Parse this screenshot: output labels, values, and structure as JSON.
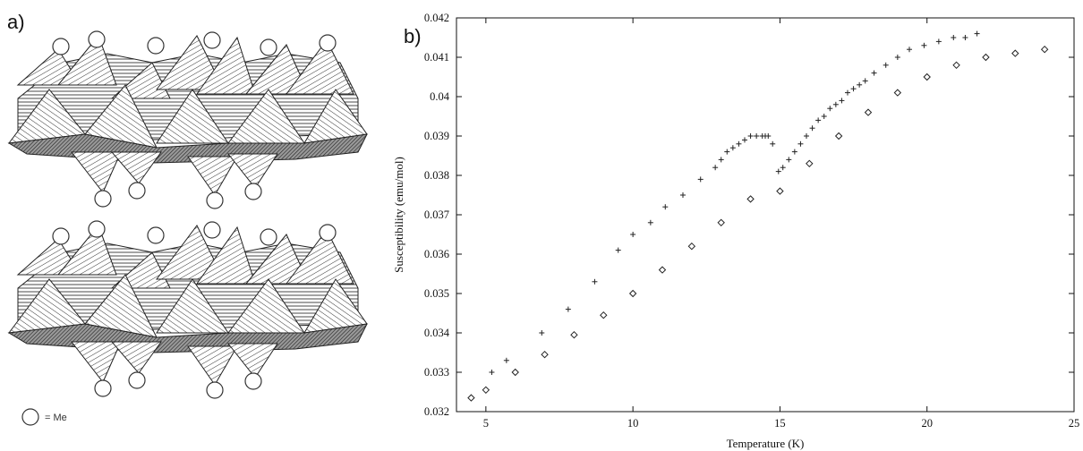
{
  "panel_a": {
    "label": "a)",
    "legend": {
      "symbol_icon": "circle-outline-icon",
      "text": "= Me"
    }
  },
  "panel_b": {
    "label": "b)"
  },
  "chart_data": {
    "type": "scatter",
    "xlabel": "Temperature (K)",
    "ylabel": "Susceptibility (emu/mol)",
    "xlim": [
      4,
      25
    ],
    "ylim": [
      0.032,
      0.042
    ],
    "x_ticks": [
      5,
      10,
      15,
      20,
      25
    ],
    "y_ticks": [
      0.032,
      0.033,
      0.034,
      0.035,
      0.036,
      0.037,
      0.038,
      0.039,
      0.04,
      0.041,
      0.042
    ],
    "y_tick_labels": [
      "0.032",
      "0.033",
      "0.034",
      "0.035",
      "0.036",
      "0.037",
      "0.038",
      "0.039",
      "0.04",
      "0.041",
      "0.042"
    ],
    "x_tick_labels": [
      "5",
      "10",
      "15",
      "20",
      "25"
    ],
    "grid": false,
    "legend": "none",
    "series": [
      {
        "marker": "plus",
        "x": [
          5.2,
          5.7,
          6.9,
          7.8,
          8.7,
          9.5,
          10.0,
          10.6,
          11.1,
          11.7,
          12.3,
          12.8,
          13.0,
          13.2,
          13.4,
          13.6,
          13.8,
          14.0,
          14.2,
          14.4,
          14.5,
          14.6,
          14.75,
          14.95,
          15.1,
          15.3,
          15.5,
          15.7,
          15.9,
          16.1,
          16.3,
          16.5,
          16.7,
          16.9,
          17.1,
          17.3,
          17.5,
          17.7,
          17.9,
          18.2,
          18.6,
          19.0,
          19.4,
          19.9,
          20.4,
          20.9,
          21.3,
          21.7
        ],
        "y": [
          0.033,
          0.0333,
          0.034,
          0.0346,
          0.0353,
          0.0361,
          0.0365,
          0.0368,
          0.0372,
          0.0375,
          0.0379,
          0.0382,
          0.0384,
          0.0386,
          0.0387,
          0.0388,
          0.0389,
          0.039,
          0.039,
          0.039,
          0.039,
          0.039,
          0.0388,
          0.0381,
          0.0382,
          0.0384,
          0.0386,
          0.0388,
          0.039,
          0.0392,
          0.0394,
          0.0395,
          0.0397,
          0.0398,
          0.0399,
          0.0401,
          0.0402,
          0.0403,
          0.0404,
          0.0406,
          0.0408,
          0.041,
          0.0412,
          0.0413,
          0.0414,
          0.0415,
          0.0415,
          0.0416
        ]
      },
      {
        "marker": "diamond",
        "x": [
          4.5,
          5.0,
          6.0,
          7.0,
          8.0,
          9.0,
          10.0,
          11.0,
          12.0,
          13.0,
          14.0,
          15.0,
          16.0,
          17.0,
          18.0,
          19.0,
          20.0,
          21.0,
          22.0,
          23.0,
          24.0
        ],
        "y": [
          0.03235,
          0.03255,
          0.033,
          0.03345,
          0.03395,
          0.03445,
          0.035,
          0.0356,
          0.0362,
          0.0368,
          0.0374,
          0.0376,
          0.0383,
          0.039,
          0.0396,
          0.0401,
          0.0405,
          0.0408,
          0.041,
          0.0411,
          0.0412
        ]
      }
    ]
  }
}
